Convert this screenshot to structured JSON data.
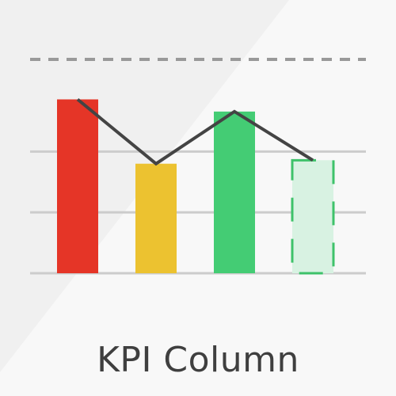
{
  "caption": "KPI Column",
  "chart_data": {
    "type": "bar",
    "categories": [
      "",
      "",
      "",
      ""
    ],
    "values": [
      100,
      63,
      93,
      65
    ],
    "target": 123,
    "trend": [
      100,
      63,
      93,
      65
    ],
    "ylim": [
      0,
      123
    ],
    "grid": true,
    "bar_colors": [
      "#e53527",
      "#ecc230",
      "#44cc74",
      "#d8f2e2"
    ],
    "last_bar_outline": "#3ec26a",
    "trend_color": "#444444",
    "target_color": "#999999",
    "grid_color": "#cccccc"
  }
}
